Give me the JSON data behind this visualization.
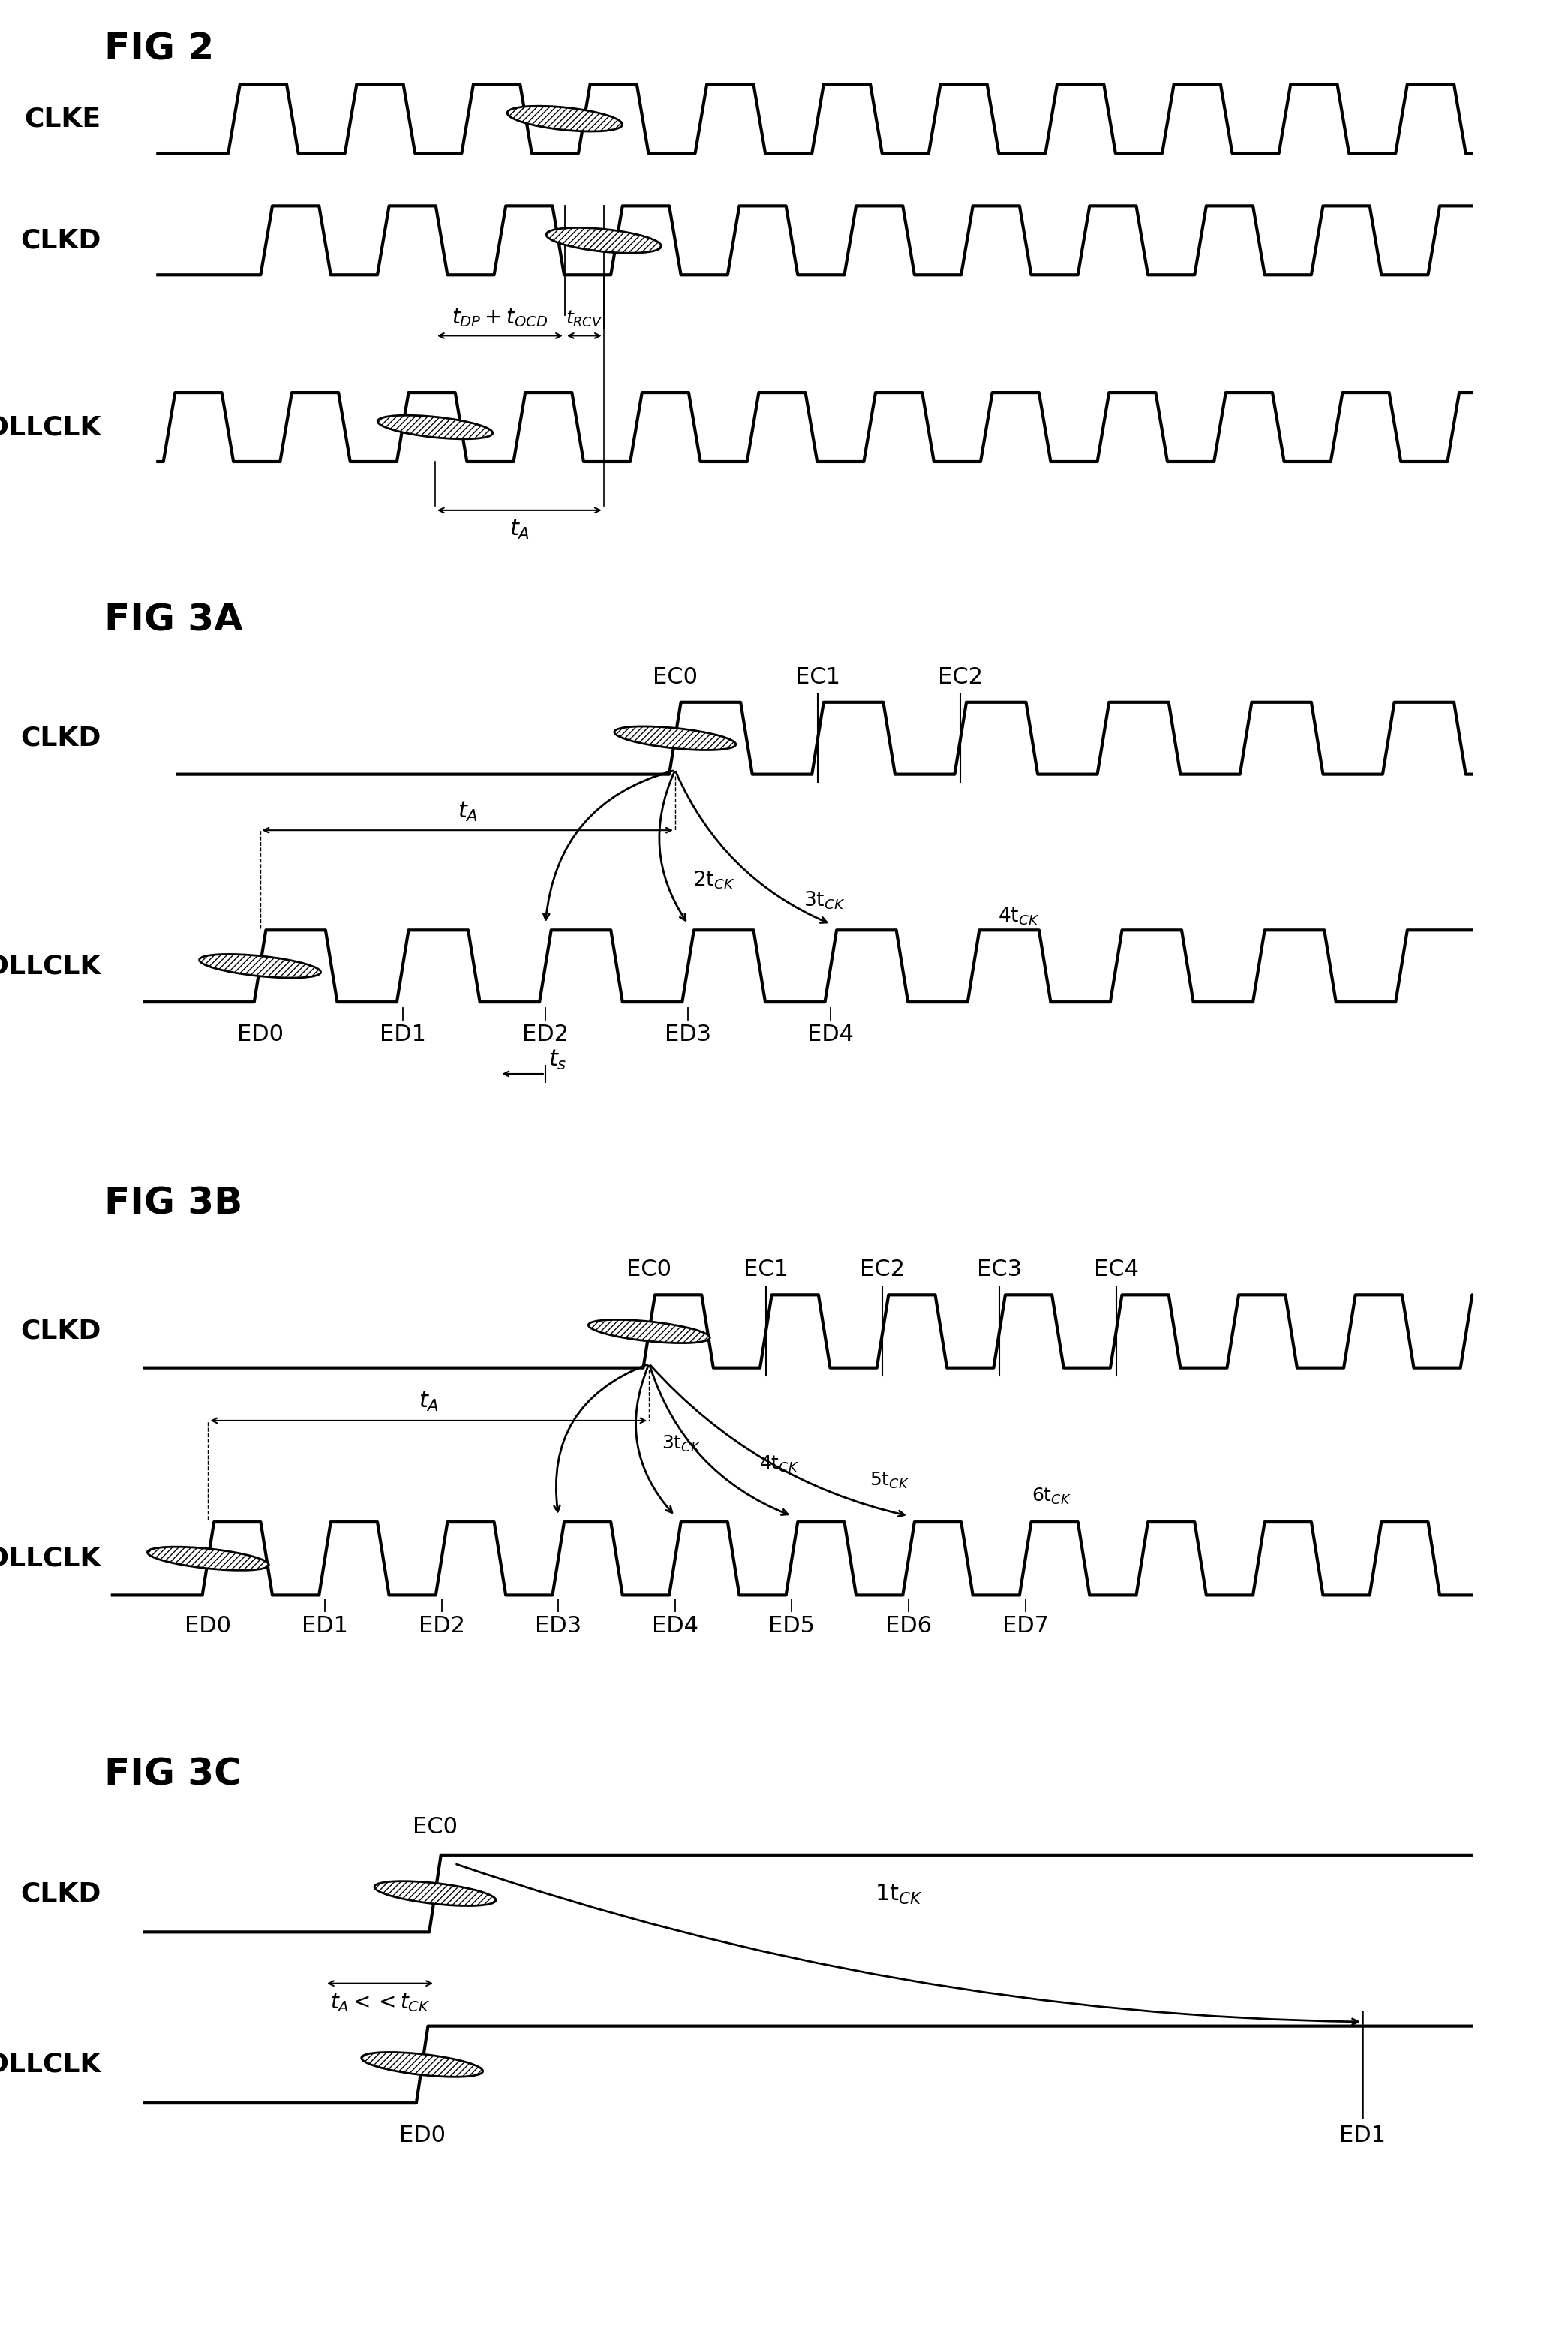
{
  "fig_title_1": "FIG 2",
  "fig_title_2": "FIG 3A",
  "fig_title_3": "FIG 3B",
  "fig_title_4": "FIG 3C",
  "bg_color": "#ffffff",
  "signal_color": "#000000",
  "title_fontsize": 36,
  "label_fontsize": 26,
  "annot_fontsize": 22,
  "lw": 3.0,
  "slant": 0.18
}
